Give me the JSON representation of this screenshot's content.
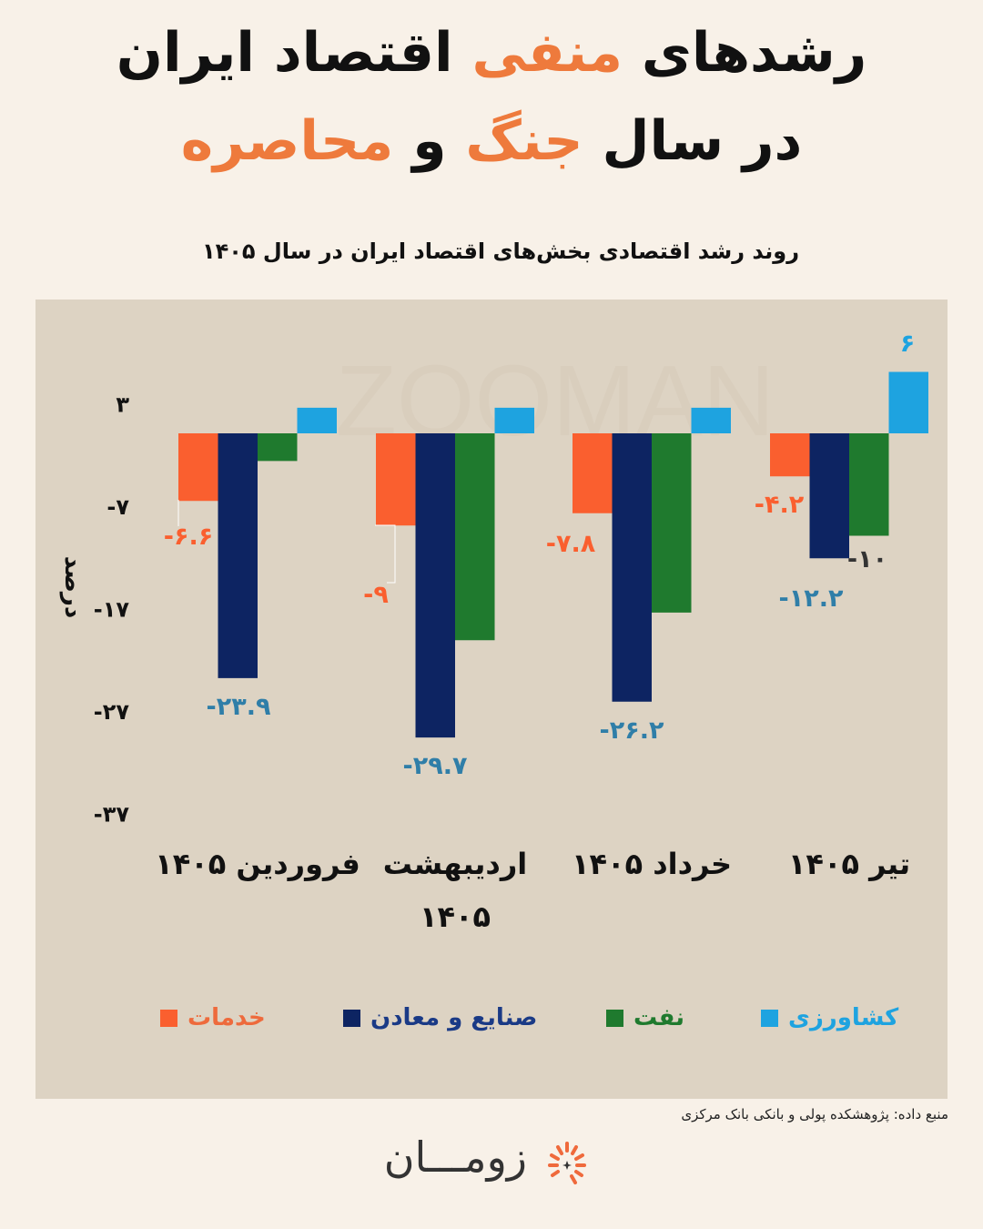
{
  "header": {
    "title_line1_a": "رشدهای ",
    "title_line1_accent": "منفی",
    "title_line1_b": " اقتصاد ایران",
    "title_line2_a": "در سال ",
    "title_line2_accent1": "جنگ",
    "title_line2_b": " و ",
    "title_line2_accent2": "محاصره",
    "subtitle": "روند رشد اقتصادی بخش‌های اقتصاد ایران در سال ۱۴۰۵"
  },
  "source": "منبع داده: پژوهشکده پولی و بانکی بانک مرکزی",
  "brand": {
    "name": "زومـــان",
    "watermark": "ZOOMAN"
  },
  "colors": {
    "title_accent": "#ee7a3c",
    "background": "#f8f1e8",
    "panel": "#ddd3c3"
  },
  "chart_data": {
    "type": "bar",
    "ylabel": "درصد",
    "ylim": [
      -37,
      9
    ],
    "yticks": [
      3,
      -7,
      -17,
      -27,
      -37
    ],
    "ytick_labels": [
      "۳",
      "-۷",
      "-۱۷",
      "-۲۷",
      "-۳۷"
    ],
    "grid": false,
    "legend_position": "bottom",
    "categories": [
      "فروردین ۱۴۰۵",
      "اردیبهشت ۱۴۰۵",
      "خرداد ۱۴۰۵",
      "تیر ۱۴۰۵"
    ],
    "series": [
      {
        "name": "خدمات",
        "color": "#fa5f2f",
        "values": [
          -6.6,
          -9,
          -7.8,
          -4.2
        ],
        "labels": [
          "-۶.۶",
          "-۹",
          "-۷.۸",
          "-۴.۲"
        ]
      },
      {
        "name": "صنایع و معادن",
        "color": "#0d2462",
        "values": [
          -23.9,
          -29.7,
          -26.2,
          -12.2
        ],
        "labels": [
          "-۲۳.۹",
          "-۲۹.۷",
          "-۲۶.۲",
          "-۱۲.۲"
        ]
      },
      {
        "name": "نفت",
        "color": "#1f7a2e",
        "values": [
          -2.7,
          -20.2,
          -17.5,
          -10
        ],
        "labels": [
          "",
          "",
          "",
          "-۱۰"
        ]
      },
      {
        "name": "کشاورزی",
        "color": "#1ea3e0",
        "values": [
          2.5,
          2.5,
          2.5,
          6
        ],
        "labels": [
          "",
          "",
          "",
          "۶"
        ]
      }
    ]
  }
}
